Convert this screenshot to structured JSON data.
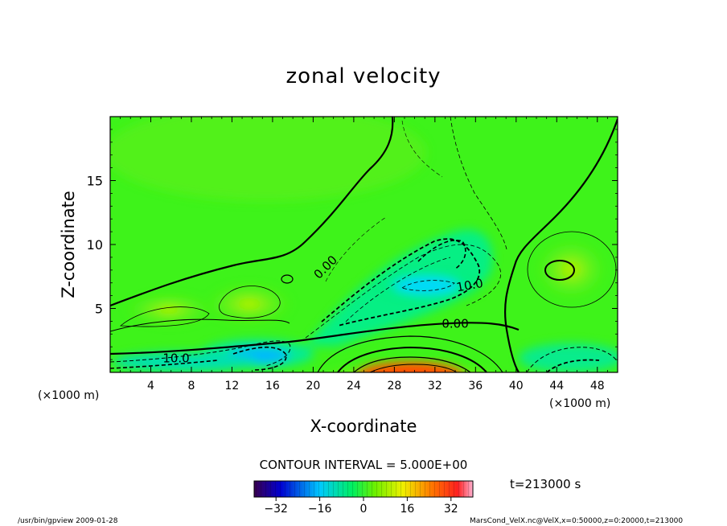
{
  "chart_data": {
    "type": "heatmap",
    "title": "zonal velocity",
    "xlabel": "X-coordinate",
    "ylabel": "Z-coordinate",
    "x_unit": "(×1000 m)",
    "x_unit_right": "(×1000 m)",
    "xlim": [
      0,
      50
    ],
    "ylim": [
      0,
      20
    ],
    "x_ticks": [
      4,
      8,
      12,
      16,
      20,
      24,
      28,
      32,
      36,
      40,
      44,
      48
    ],
    "y_ticks": [
      5,
      10,
      15
    ],
    "contour_labels": [
      {
        "text": "0.00",
        "x": 21.5,
        "z": 8.0,
        "rotate": -45
      },
      {
        "text": "10.0",
        "x": 35.5,
        "z": 6.5,
        "rotate": -10
      },
      {
        "text": "0.00",
        "x": 34.0,
        "z": 3.5,
        "rotate": 0
      },
      {
        "text": "10.0",
        "x": 6.5,
        "z": 0.8,
        "rotate": 0
      }
    ],
    "contour_interval": "CONTOUR INTERVAL = 5.000E+00",
    "time_label": "t=213000 s",
    "colorbar": {
      "min": -40,
      "max": 40,
      "ticks": [
        -32,
        -16,
        0,
        16,
        32
      ],
      "tick_labels": [
        "−32",
        "−16",
        "0",
        "16",
        "32"
      ]
    },
    "field_features": [
      {
        "kind": "min",
        "x": 30.5,
        "z": 6.8,
        "value": -15
      },
      {
        "kind": "min",
        "x": 14.5,
        "z": 1.0,
        "value": -22
      },
      {
        "kind": "min",
        "x": 44.5,
        "z": 1.2,
        "value": -12
      },
      {
        "kind": "max",
        "x": 30.0,
        "z": 0.4,
        "value": 32
      },
      {
        "kind": "max",
        "x": 44.5,
        "z": 8.0,
        "value": 9
      },
      {
        "kind": "max",
        "x": 13.5,
        "z": 5.5,
        "value": 7
      },
      {
        "kind": "max",
        "x": 6.0,
        "z": 5.5,
        "value": 6
      }
    ]
  },
  "footer": {
    "left": "/usr/bin/gpview  2009-01-28",
    "right": "MarsCond_VelX.nc@VelX,x=0:50000,z=0:20000,t=213000"
  },
  "colors": {
    "background_field": "#3ef31a",
    "negative": "#00c8ff",
    "positive": "#ff5a00"
  }
}
